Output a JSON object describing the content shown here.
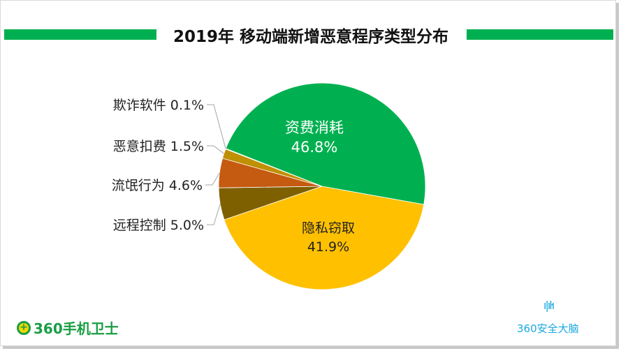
{
  "chart_data": {
    "type": "pie",
    "title": "2019年 移动端新增恶意程序类型分布",
    "slices": [
      {
        "name": "资费消耗",
        "value": 46.8,
        "label": "46.8%",
        "color": "#00b050"
      },
      {
        "name": "隐私窃取",
        "value": 41.9,
        "label": "41.9%",
        "color": "#ffc000"
      },
      {
        "name": "远程控制",
        "value": 5.0,
        "label": "5.0%",
        "color": "#7f6000"
      },
      {
        "name": "流氓行为",
        "value": 4.6,
        "label": "4.6%",
        "color": "#c55a11"
      },
      {
        "name": "恶意扣费",
        "value": 1.5,
        "label": "1.5%",
        "color": "#bf9000"
      },
      {
        "name": "欺诈软件",
        "value": 0.1,
        "label": "0.1%",
        "color": "#a0a0a0"
      }
    ]
  },
  "logos": {
    "left": "360手机卫士",
    "right": "360安全大脑"
  }
}
